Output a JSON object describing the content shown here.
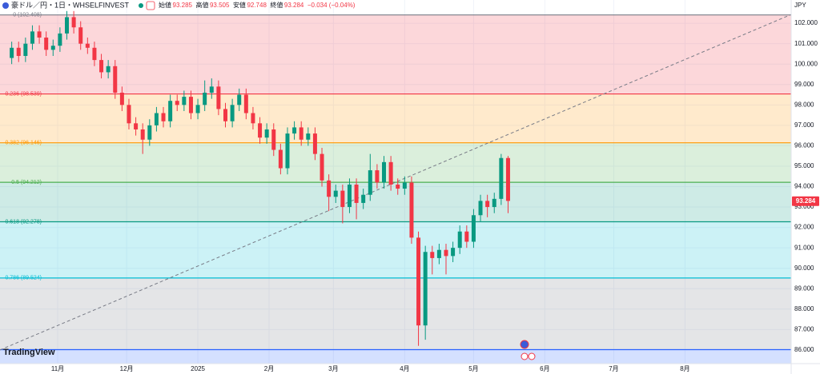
{
  "chart_data": {
    "type": "candlestick",
    "title": "豪ドル／円・1日・WHSELFINVEST",
    "ohlc_labels": [
      "始値",
      "高値",
      "安値",
      "終値"
    ],
    "ohlc_values": [
      93.285,
      93.505,
      92.748,
      93.284
    ],
    "change_label": "−0.034 (−0.04%)",
    "currency": "JPY",
    "watermark": "TradingView",
    "last_price": 93.284,
    "up_color": "#089981",
    "down_color": "#f23645",
    "ylim": [
      85.33,
      103.14
    ],
    "yticks": [
      {
        "value": 86,
        "label": "86.000"
      },
      {
        "value": 87,
        "label": "87.000"
      },
      {
        "value": 88,
        "label": "88.000"
      },
      {
        "value": 89,
        "label": "89.000"
      },
      {
        "value": 90,
        "label": "90.000"
      },
      {
        "value": 91,
        "label": "91.000"
      },
      {
        "value": 92,
        "label": "92.000"
      },
      {
        "value": 93,
        "label": "93.000"
      },
      {
        "value": 94,
        "label": "94.000"
      },
      {
        "value": 95,
        "label": "95.000"
      },
      {
        "value": 96,
        "label": "96.000"
      },
      {
        "value": 97,
        "label": "97.000"
      },
      {
        "value": 98,
        "label": "98.000"
      },
      {
        "value": 99,
        "label": "99.000"
      },
      {
        "value": 100,
        "label": "100.000"
      },
      {
        "value": 101,
        "label": "101.000"
      },
      {
        "value": 102,
        "label": "102.000"
      }
    ],
    "xlim": [
      -25.1,
      319.2
    ],
    "xticks": [
      {
        "value": 0,
        "label": "11月"
      },
      {
        "value": 30,
        "label": "12月"
      },
      {
        "value": 61,
        "label": "2025"
      },
      {
        "value": 92,
        "label": "2月"
      },
      {
        "value": 120,
        "label": "3月"
      },
      {
        "value": 151,
        "label": "4月"
      },
      {
        "value": 181,
        "label": "5月"
      },
      {
        "value": 212,
        "label": "6月"
      },
      {
        "value": 242,
        "label": "7月"
      },
      {
        "value": 273,
        "label": "8月"
      }
    ],
    "grid": true,
    "fib_levels": [
      102.408,
      98.539,
      96.146,
      94.212,
      92.278,
      89.524,
      86.014
    ],
    "fib_labels": [
      "0 (102.408)",
      "0.236 (98.539)",
      "0.382 (96.146)",
      "0.5 (94.212)",
      "0.618 (92.278)",
      "0.786 (89.524)",
      null
    ],
    "fib_line_colors": [
      "#787b86",
      "#f23645",
      "#ff9800",
      "#4caf50",
      "#089981",
      "#00bcd4",
      "#2962ff"
    ],
    "fib_fill_colors": [
      "#f23645",
      "#ff9800",
      "#4caf50",
      "#089981",
      "#00bcd4",
      "#787b86"
    ],
    "below_fill_color": "#2962ff",
    "trend_line": {
      "x": [
        -25.1,
        319.2
      ],
      "values": [
        86.0,
        102.43
      ]
    },
    "x": [
      -20,
      -17,
      -14,
      -11,
      -8,
      -5,
      -2,
      1,
      4,
      7,
      10,
      13,
      16,
      19,
      22,
      25,
      28,
      31,
      34,
      37,
      40,
      43,
      46,
      49,
      52,
      55,
      58,
      61,
      64,
      67,
      70,
      73,
      76,
      79,
      82,
      85,
      88,
      91,
      94,
      97,
      100,
      103,
      106,
      109,
      112,
      115,
      118,
      121,
      124,
      127,
      130,
      133,
      136,
      139,
      142,
      145,
      148,
      151,
      154,
      157,
      160,
      163,
      166,
      169,
      172,
      175,
      178,
      181,
      184,
      187,
      190,
      193,
      196
    ],
    "open": [
      100.3,
      100.8,
      100.4,
      101.0,
      101.6,
      101.3,
      100.7,
      100.9,
      101.5,
      102.3,
      101.8,
      101.0,
      100.8,
      100.2,
      99.6,
      99.9,
      98.6,
      98.0,
      97.1,
      96.8,
      96.3,
      97.0,
      97.6,
      97.2,
      98.2,
      98.0,
      98.4,
      97.6,
      98.0,
      98.6,
      98.9,
      97.8,
      97.2,
      98.0,
      98.5,
      97.6,
      97.1,
      96.4,
      96.8,
      95.8,
      94.9,
      96.6,
      96.9,
      96.3,
      96.6,
      95.6,
      94.3,
      93.5,
      93.8,
      93.0,
      94.1,
      93.2,
      93.6,
      94.8,
      94.2,
      95.2,
      94.1,
      93.9,
      94.2,
      91.5,
      87.2,
      90.8,
      90.5,
      90.9,
      90.6,
      91.0,
      91.8,
      91.3,
      92.6,
      93.3,
      93.0,
      93.4,
      95.4
    ],
    "high": [
      101.1,
      101.1,
      101.3,
      101.9,
      101.9,
      101.6,
      101.2,
      101.8,
      102.6,
      102.6,
      102.1,
      101.3,
      101.1,
      100.5,
      100.2,
      100.2,
      98.9,
      98.3,
      97.4,
      97.1,
      97.3,
      97.9,
      97.9,
      98.5,
      98.5,
      98.7,
      98.7,
      98.3,
      99.2,
      99.3,
      99.2,
      98.1,
      98.3,
      98.8,
      98.8,
      97.9,
      97.4,
      97.1,
      97.1,
      96.1,
      96.9,
      97.2,
      97.2,
      96.9,
      96.9,
      95.9,
      94.6,
      94.1,
      94.1,
      94.4,
      94.4,
      93.9,
      95.6,
      95.1,
      95.5,
      95.5,
      94.4,
      94.5,
      94.5,
      91.8,
      91.1,
      91.1,
      91.2,
      91.2,
      91.3,
      92.1,
      92.1,
      92.9,
      93.6,
      93.6,
      93.7,
      95.6,
      95.5
    ],
    "low": [
      100.0,
      100.1,
      100.1,
      100.7,
      101.0,
      100.4,
      100.4,
      100.6,
      101.2,
      101.5,
      100.7,
      100.5,
      99.9,
      99.3,
      99.3,
      98.3,
      97.7,
      96.8,
      96.5,
      95.6,
      96.0,
      96.7,
      96.9,
      96.9,
      97.7,
      97.7,
      97.3,
      97.3,
      97.7,
      98.3,
      97.5,
      96.9,
      96.9,
      97.7,
      97.3,
      96.8,
      96.1,
      96.1,
      95.5,
      94.6,
      94.6,
      96.3,
      96.0,
      96.0,
      95.3,
      94.0,
      92.8,
      93.2,
      92.2,
      92.7,
      92.4,
      92.9,
      93.3,
      93.9,
      93.9,
      93.8,
      93.6,
      93.6,
      91.2,
      86.2,
      86.5,
      89.7,
      90.2,
      89.7,
      90.3,
      90.7,
      91.0,
      91.0,
      92.3,
      92.5,
      92.7,
      93.1,
      92.7
    ],
    "close": [
      100.8,
      100.4,
      101.0,
      101.6,
      101.3,
      100.7,
      100.9,
      101.5,
      102.3,
      101.8,
      101.0,
      100.8,
      100.2,
      99.6,
      99.9,
      98.6,
      98.0,
      97.1,
      96.8,
      96.3,
      97.0,
      97.6,
      97.2,
      98.2,
      98.0,
      98.4,
      97.6,
      98.0,
      98.6,
      98.9,
      97.8,
      97.2,
      98.0,
      98.5,
      97.6,
      97.1,
      96.4,
      96.8,
      95.8,
      94.9,
      96.6,
      96.9,
      96.3,
      96.6,
      95.6,
      94.3,
      93.5,
      93.8,
      93.0,
      94.1,
      93.2,
      93.6,
      94.8,
      94.2,
      95.2,
      94.1,
      93.9,
      94.2,
      91.5,
      87.2,
      90.8,
      90.5,
      90.9,
      90.6,
      91.0,
      91.8,
      91.3,
      92.6,
      93.3,
      93.0,
      93.4,
      95.4,
      93.3
    ]
  }
}
